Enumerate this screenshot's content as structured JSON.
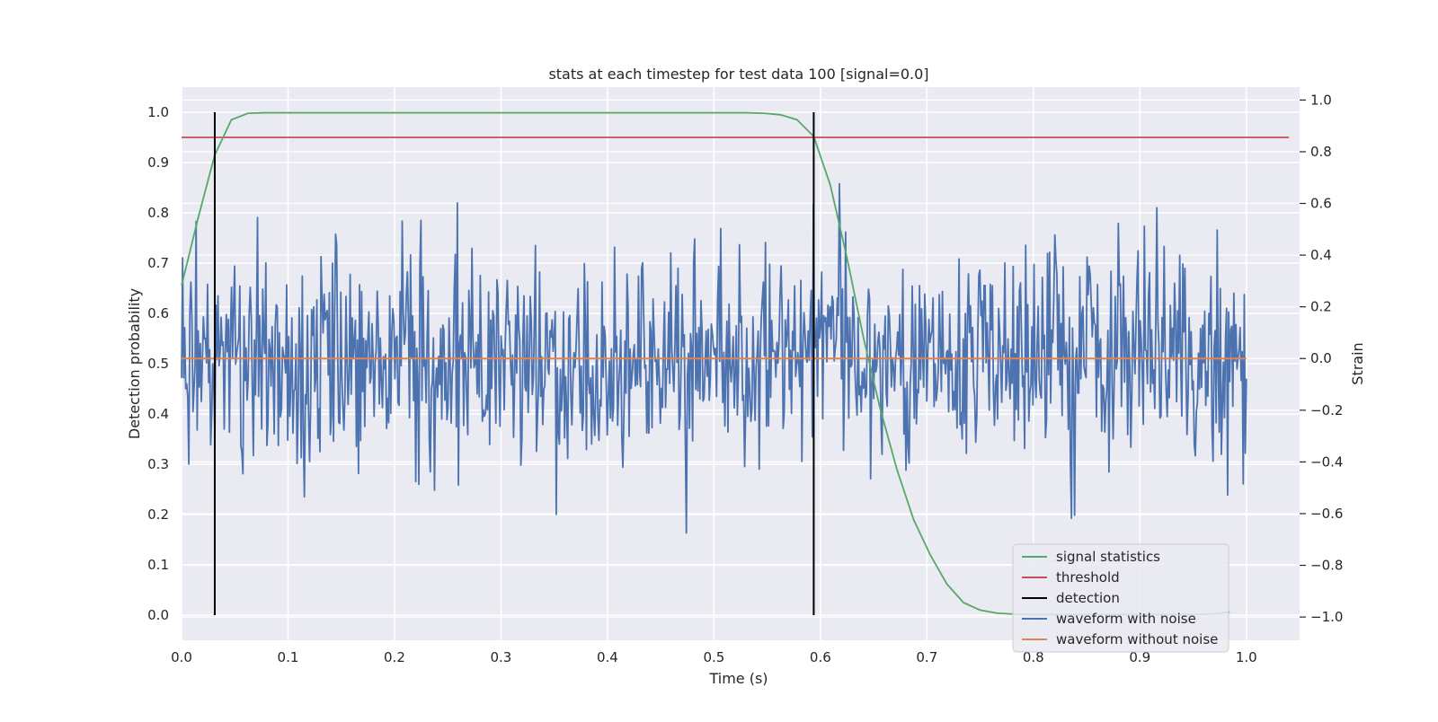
{
  "chart_data": {
    "type": "line",
    "title": "stats at each timestep for test data 100 [signal=0.0]",
    "xlabel": "Time (s)",
    "ylabel": "Detection probability",
    "y2label": "Strain",
    "xlim": [
      0.0,
      1.05
    ],
    "ylim": [
      -0.05,
      1.05
    ],
    "y2lim": [
      -1.09,
      1.05
    ],
    "xticks": [
      "0.0",
      "0.1",
      "0.2",
      "0.3",
      "0.4",
      "0.5",
      "0.6",
      "0.7",
      "0.8",
      "0.9",
      "1.0"
    ],
    "yticks": [
      "0.0",
      "0.1",
      "0.2",
      "0.3",
      "0.4",
      "0.5",
      "0.6",
      "0.7",
      "0.8",
      "0.9",
      "1.0"
    ],
    "y2ticks": [
      "−1.0",
      "−0.8",
      "−0.6",
      "−0.4",
      "−0.2",
      "0.0",
      "0.2",
      "0.4",
      "0.6",
      "0.8",
      "1.0"
    ],
    "grid": true,
    "legend_position": "lower-right",
    "series": [
      {
        "name": "signal statistics",
        "axis": "left",
        "color": "#55a868",
        "x": [
          0.0,
          0.0156,
          0.0312,
          0.0468,
          0.0625,
          0.0781,
          0.0937,
          0.2,
          0.3,
          0.4,
          0.5,
          0.53,
          0.5468,
          0.5625,
          0.5781,
          0.5937,
          0.6093,
          0.625,
          0.6406,
          0.6562,
          0.6718,
          0.6875,
          0.7031,
          0.7187,
          0.7343,
          0.75,
          0.7656,
          0.7812,
          0.8,
          0.85,
          0.9,
          0.95,
          0.97,
          0.9843
        ],
        "values": [
          0.655,
          0.79,
          0.915,
          0.985,
          0.998,
          0.999,
          0.999,
          0.999,
          0.999,
          0.999,
          0.999,
          0.999,
          0.998,
          0.995,
          0.985,
          0.952,
          0.855,
          0.71,
          0.55,
          0.41,
          0.29,
          0.19,
          0.12,
          0.062,
          0.025,
          0.01,
          0.004,
          0.002,
          0.001,
          0.001,
          0.001,
          0.001,
          0.003,
          0.006
        ]
      },
      {
        "name": "threshold",
        "axis": "left",
        "color": "#c44e52",
        "x": [
          0.0,
          1.04
        ],
        "values": [
          0.95,
          0.95
        ]
      },
      {
        "name": "detection",
        "axis": "left",
        "color": "#000000",
        "x": [
          0.0312,
          0.5937
        ],
        "values": [
          1.0,
          1.0
        ]
      },
      {
        "name": "waveform with noise",
        "axis": "right",
        "color": "#4c72b0",
        "x_start": 0.0,
        "x_end": 1.0,
        "n_points": 1024
      },
      {
        "name": "waveform without noise",
        "axis": "right",
        "color": "#dd8452",
        "x": [
          0.0,
          1.0
        ],
        "values": [
          0.0,
          0.0
        ]
      }
    ]
  }
}
